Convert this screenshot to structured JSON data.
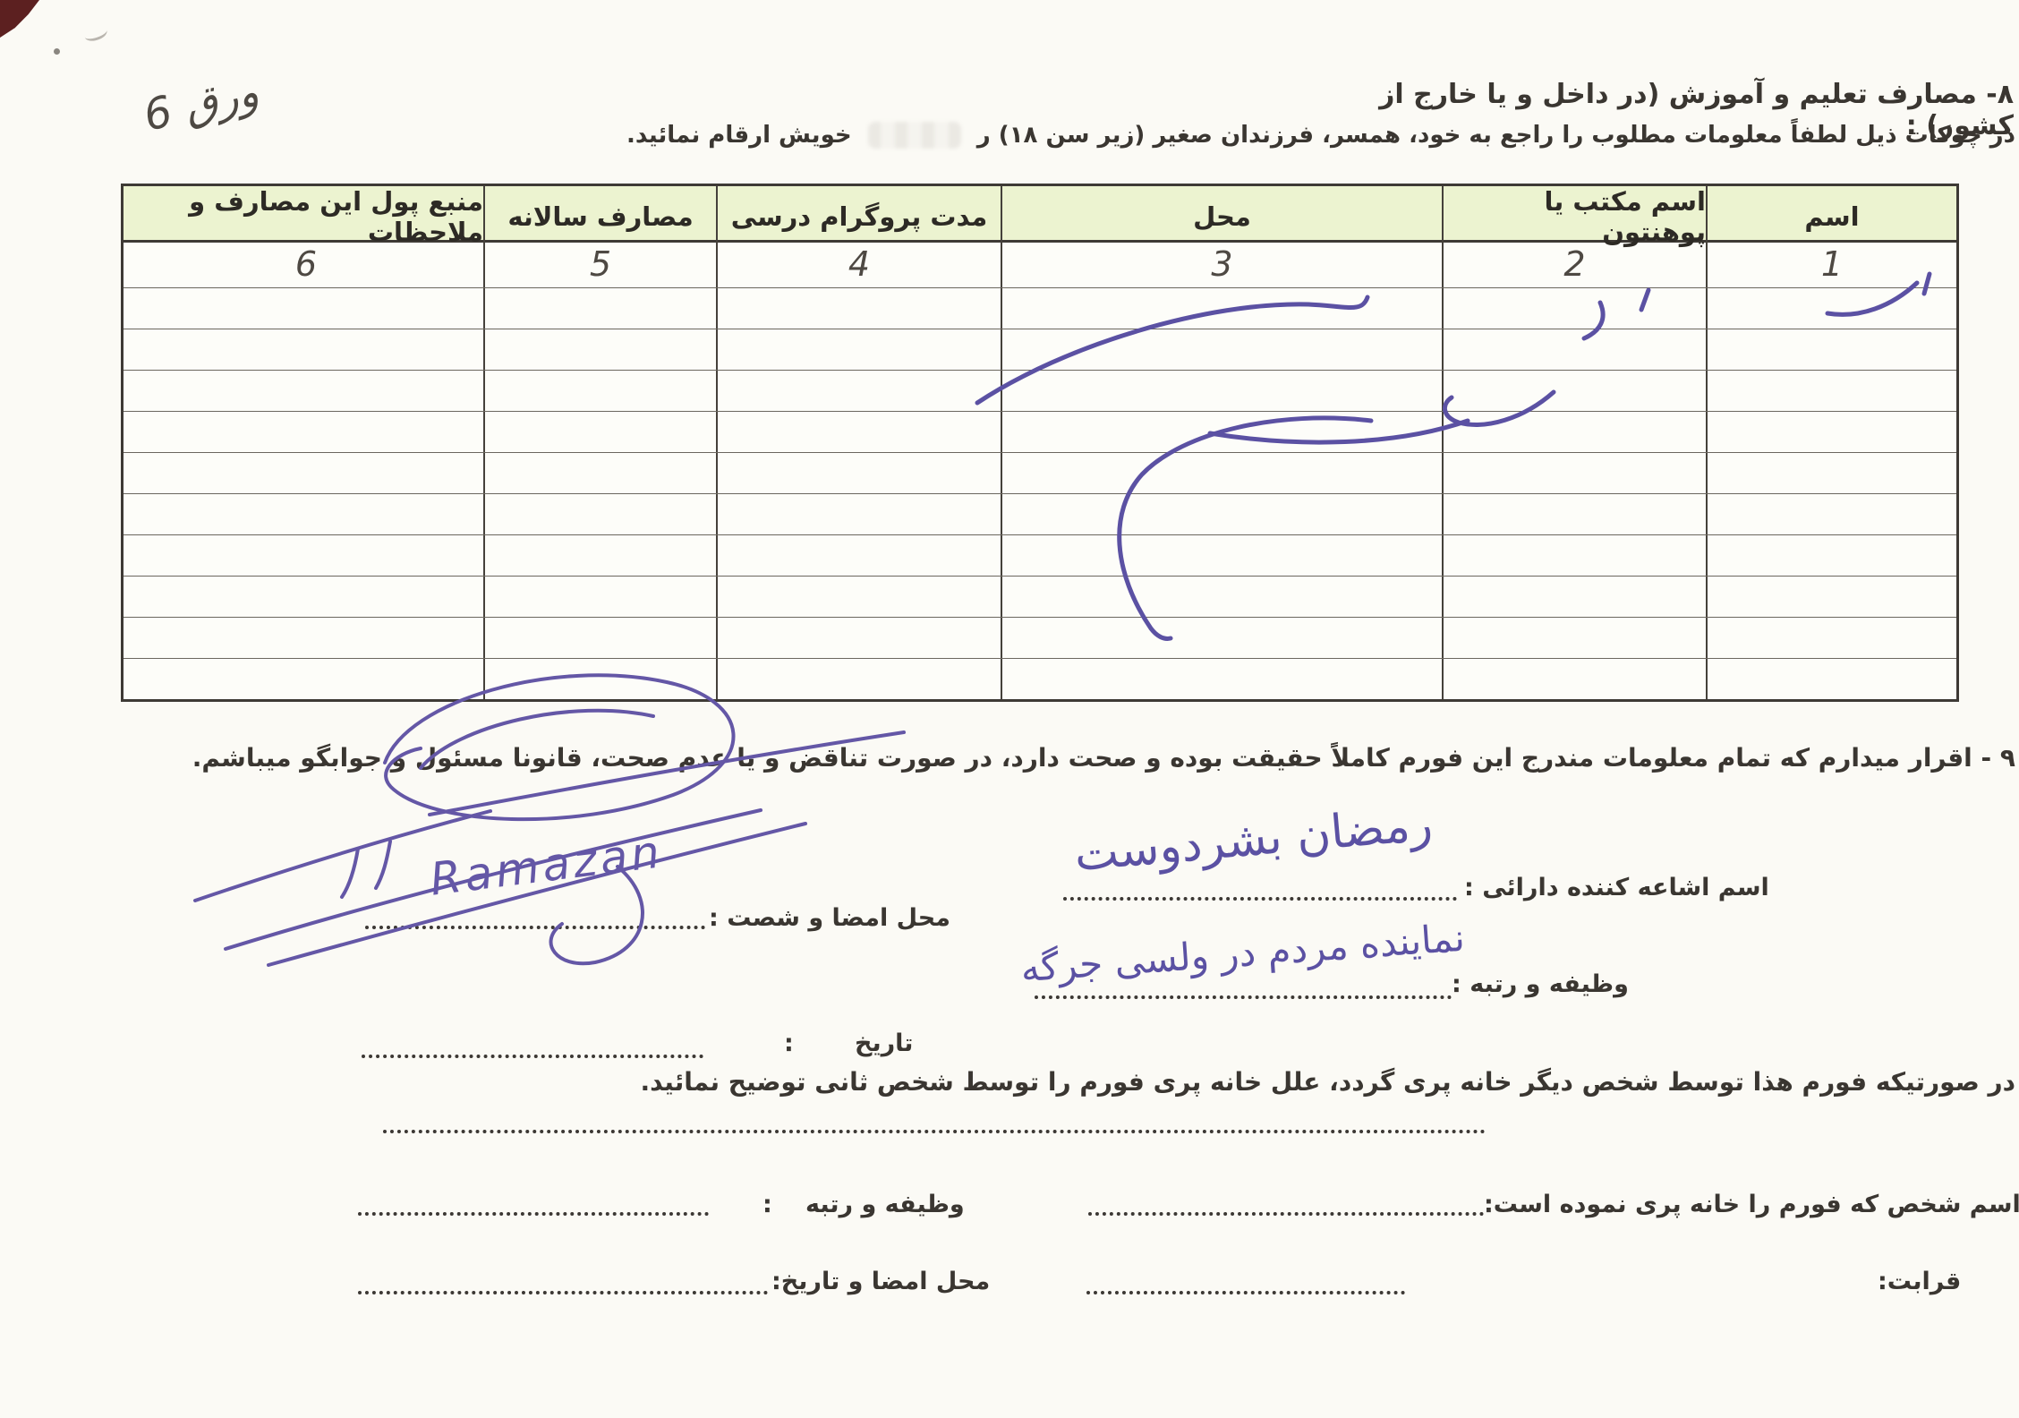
{
  "page": {
    "sheet_label": "ورق 6",
    "section8": {
      "title": "۸- مصارف تعلیم و آموزش (در داخل و یا خارج از کشور) :",
      "instruction_part1": "در چوکات ذیل لطفاً معلومات مطلوب را راجع به خود، همسر، فرزندان صغیر (زیر سن ۱۸) ر",
      "instruction_part2": "خویش ارقام نمائید."
    },
    "table": {
      "headers": [
        "اسم",
        "اسم مکتب یا پوهنتون",
        "محل",
        "مدت پروگرام درسی",
        "مصارف سالانه",
        "منبع پول این مصارف و ملاحظات"
      ],
      "column_numbers": [
        "1",
        "2",
        "3",
        "4",
        "5",
        "6"
      ],
      "empty_row_count": 10
    },
    "section9": {
      "declaration": "۹ - اقرار میدارم که تمام معلومات مندرج این فورم کاملاً حقیقت بوده و صحت دارد، در صورت تناقض و یا عدم صحت، قانونا مسئول و جوابگو میباشم."
    },
    "fields": {
      "declarant_name_label": "اسم اشاعه کننده دارائی :",
      "declarant_name_handwritten": "رمضان بشردوست",
      "signature_place_label": "محل امضا و شصت :",
      "signature_handwritten": "Ramazan",
      "duty_rank_label": "وظیفه و رتبه :",
      "duty_rank_handwritten": "نماینده مردم در ولسی جرگه",
      "date_label": "تاریخ",
      "date_colon": ":"
    },
    "second_person": {
      "note": "در صورتیکه فورم هذا توسط شخص دیگر خانه پری گردد، علل خانه پری فورم را توسط شخص ثانی توضیح نمائید.",
      "filler_name_label": "اسم شخص که فورم را خانه پری نموده است:",
      "duty_rank_label": "وظیفه و رتبه",
      "duty_rank_colon": ":",
      "kinship_label": "قرابت:",
      "signature_date_label": "محل امضا و تاریخ:"
    },
    "colors": {
      "header_green": "#ecf3d0",
      "ink_blue": "#5b51a3",
      "signature_purple": "#6457a6",
      "print_black": "#3a3631"
    }
  }
}
